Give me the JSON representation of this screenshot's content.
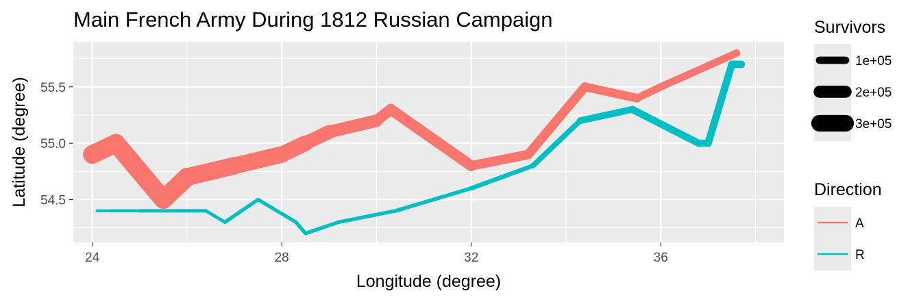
{
  "chart_data": {
    "type": "line",
    "title": "Main French Army During 1812 Russian Campaign",
    "xlabel": "Longitude (degree)",
    "ylabel": "Latitude (degree)",
    "xlim": [
      23.6,
      38.6
    ],
    "ylim": [
      54.12,
      55.9
    ],
    "x_ticks": [
      24,
      28,
      32,
      36
    ],
    "x_tick_labels": [
      "24",
      "28",
      "32",
      "36"
    ],
    "y_ticks": [
      54.5,
      55.0,
      55.5
    ],
    "y_tick_labels": [
      "54.5",
      "55.0",
      "55.5"
    ],
    "grid": true,
    "legend_position": "right",
    "size_legend": {
      "title": "Survivors",
      "entries": [
        {
          "label": "1e+05",
          "value": 100000
        },
        {
          "label": "2e+05",
          "value": 200000
        },
        {
          "label": "3e+05",
          "value": 300000
        }
      ]
    },
    "color_legend": {
      "title": "Direction",
      "entries": [
        {
          "label": "A",
          "color": "#F8766D"
        },
        {
          "label": "R",
          "color": "#00BFC4"
        }
      ]
    },
    "series": [
      {
        "name": "A",
        "color": "#F8766D",
        "points": [
          {
            "lon": 24.0,
            "lat": 54.9,
            "survivors": 340000
          },
          {
            "lon": 24.5,
            "lat": 55.0,
            "survivors": 340000
          },
          {
            "lon": 25.5,
            "lat": 54.5,
            "survivors": 340000
          },
          {
            "lon": 26.0,
            "lat": 54.7,
            "survivors": 320000
          },
          {
            "lon": 27.0,
            "lat": 54.8,
            "survivors": 300000
          },
          {
            "lon": 28.0,
            "lat": 54.9,
            "survivors": 280000
          },
          {
            "lon": 28.5,
            "lat": 55.0,
            "survivors": 240000
          },
          {
            "lon": 29.0,
            "lat": 55.1,
            "survivors": 210000
          },
          {
            "lon": 30.0,
            "lat": 55.2,
            "survivors": 180000
          },
          {
            "lon": 30.3,
            "lat": 55.3,
            "survivors": 175000
          },
          {
            "lon": 32.0,
            "lat": 54.8,
            "survivors": 145000
          },
          {
            "lon": 33.2,
            "lat": 54.9,
            "survivors": 140000
          },
          {
            "lon": 34.4,
            "lat": 55.5,
            "survivors": 127100
          },
          {
            "lon": 35.5,
            "lat": 55.4,
            "survivors": 100000
          },
          {
            "lon": 36.0,
            "lat": 55.5,
            "survivors": 100000
          },
          {
            "lon": 37.6,
            "lat": 55.8,
            "survivors": 100000
          }
        ]
      },
      {
        "name": "R",
        "color": "#00BFC4",
        "points": [
          {
            "lon": 37.7,
            "lat": 55.7,
            "survivors": 100000
          },
          {
            "lon": 37.5,
            "lat": 55.7,
            "survivors": 98000
          },
          {
            "lon": 37.0,
            "lat": 55.0,
            "survivors": 97000
          },
          {
            "lon": 36.8,
            "lat": 55.0,
            "survivors": 96000
          },
          {
            "lon": 35.4,
            "lat": 55.3,
            "survivors": 87000
          },
          {
            "lon": 34.3,
            "lat": 55.2,
            "survivors": 55000
          },
          {
            "lon": 33.3,
            "lat": 54.8,
            "survivors": 37000
          },
          {
            "lon": 32.0,
            "lat": 54.6,
            "survivors": 24000
          },
          {
            "lon": 30.4,
            "lat": 54.4,
            "survivors": 20000
          },
          {
            "lon": 29.2,
            "lat": 54.3,
            "survivors": 20000
          },
          {
            "lon": 28.5,
            "lat": 54.2,
            "survivors": 20000
          },
          {
            "lon": 28.3,
            "lat": 54.3,
            "survivors": 20000
          },
          {
            "lon": 27.5,
            "lat": 54.5,
            "survivors": 20000
          },
          {
            "lon": 26.8,
            "lat": 54.3,
            "survivors": 12000
          },
          {
            "lon": 26.4,
            "lat": 54.4,
            "survivors": 14000
          },
          {
            "lon": 25.0,
            "lat": 54.4,
            "survivors": 8000
          },
          {
            "lon": 24.4,
            "lat": 54.4,
            "survivors": 4000
          },
          {
            "lon": 24.2,
            "lat": 54.4,
            "survivors": 4000
          },
          {
            "lon": 24.1,
            "lat": 54.4,
            "survivors": 4000
          }
        ]
      }
    ]
  }
}
